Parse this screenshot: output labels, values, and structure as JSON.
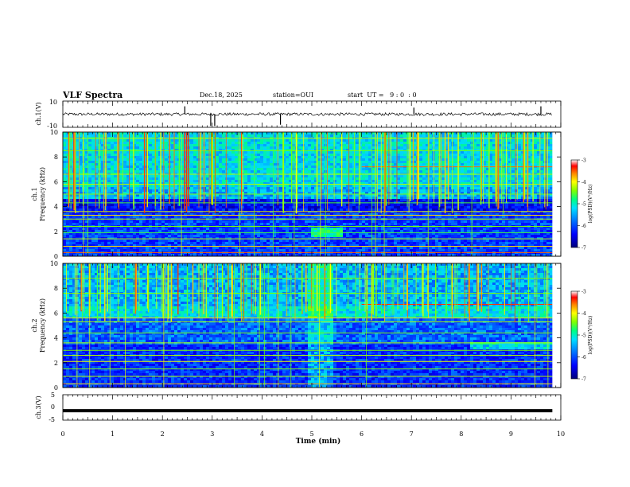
{
  "header": {
    "title": "VLF Spectra",
    "date": "Dec.18, 2025",
    "station": "station=OUI",
    "start": "start  UT =   9 : 0  : 0"
  },
  "chart_data": [
    {
      "type": "line",
      "name": "ch1-waveform",
      "ylabel": "ch.1(V)",
      "ylim": [
        -10,
        10
      ],
      "yticks": [
        10,
        -10
      ],
      "baseline": 0,
      "spikes": [
        {
          "t": 2.45,
          "v": 6
        },
        {
          "t": 2.97,
          "v": -9
        },
        {
          "t": 3.05,
          "v": -9
        },
        {
          "t": 4.37,
          "v": -8
        },
        {
          "t": 7.05,
          "v": 5
        },
        {
          "t": 9.6,
          "v": 6
        }
      ]
    },
    {
      "type": "heatmap",
      "name": "ch1-spectrogram",
      "ylabel": "ch.1\nFrequency  (kHz)",
      "ylim": [
        0,
        10
      ],
      "yticks": [
        0,
        2,
        4,
        6,
        8,
        10
      ],
      "colorbar": {
        "label": "log(PSD)(V²/Hz)",
        "range": [
          -7,
          -3
        ],
        "ticks": [
          -3,
          -4,
          -5,
          -6,
          -7
        ]
      },
      "features": [
        {
          "type": "broadband-impulses",
          "freq_range_khz": [
            4.5,
            10
          ],
          "note": "dense sferics above ~4.5 kHz"
        },
        {
          "type": "narrowband-line",
          "freq_khz": 7.2,
          "t_range_min": [
            6.0,
            9.8
          ]
        },
        {
          "type": "emission",
          "freq_khz": 2.0,
          "t_min": 5.3
        }
      ]
    },
    {
      "type": "heatmap",
      "name": "ch2-spectrogram",
      "ylabel": "ch.2\nFrequency  (kHz)",
      "ylim": [
        0,
        10
      ],
      "yticks": [
        0,
        2,
        4,
        6,
        8,
        10
      ],
      "colorbar": {
        "label": "log(PSD)(V²/Hz)",
        "range": [
          -7,
          -3
        ],
        "ticks": [
          -3,
          -4,
          -5,
          -6,
          -7
        ]
      },
      "features": [
        {
          "type": "broadband-impulses",
          "freq_range_khz": [
            6.5,
            10
          ]
        },
        {
          "type": "band",
          "freq_khz": 6.4,
          "t_range_min": [
            0,
            9.8
          ]
        },
        {
          "type": "narrowband-line",
          "freq_khz": 6.7,
          "t_range_min": [
            6.0,
            9.8
          ]
        },
        {
          "type": "emission-band",
          "freq_khz": 3.4,
          "t_range_min": [
            8.2,
            9.8
          ]
        }
      ]
    },
    {
      "type": "line",
      "name": "ch3-waveform",
      "ylabel": "ch.3(V)",
      "ylim": [
        -5,
        5
      ],
      "yticks": [
        5,
        0,
        -5
      ],
      "baseline": -1.3
    }
  ],
  "xaxis": {
    "label": "Time  (min)",
    "range": [
      0,
      10
    ],
    "ticks": [
      "0",
      "1",
      "2",
      "3",
      "4",
      "5",
      "6",
      "7",
      "8",
      "9",
      "10"
    ],
    "data_end": 9.83
  },
  "colors": {
    "colormap": [
      "#00007a",
      "#0000ff",
      "#0060ff",
      "#00d8ff",
      "#00ff80",
      "#80ff00",
      "#ffff00",
      "#ff8000",
      "#ff0000",
      "#ffffff"
    ]
  }
}
